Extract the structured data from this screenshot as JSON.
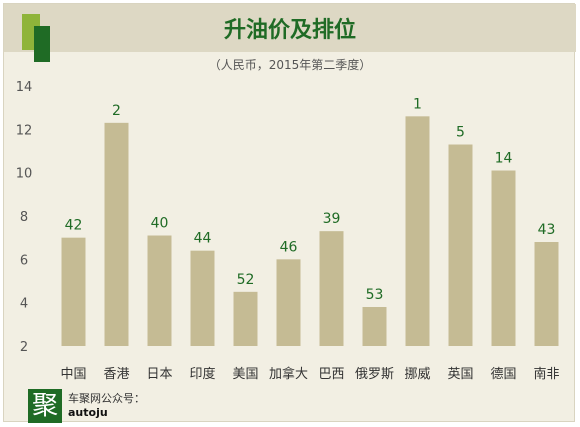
{
  "colors": {
    "bar": "#c5bb94",
    "label": "#1f6b25",
    "axis_text": "#555555",
    "grid": "#e2ddcb"
  },
  "chart_data": {
    "type": "bar",
    "title": "升油价及排位",
    "subtitle": "（人民币，2015年第二季度）",
    "xlabel": "",
    "ylabel": "",
    "ylim": [
      2,
      14
    ],
    "yticks": [
      2,
      4,
      6,
      8,
      10,
      12,
      14
    ],
    "grid": false,
    "categories": [
      "中国",
      "香港",
      "日本",
      "印度",
      "美国",
      "加拿大",
      "巴西",
      "俄罗斯",
      "挪威",
      "英国",
      "德国",
      "南非"
    ],
    "values": [
      7.0,
      12.3,
      7.1,
      6.4,
      4.5,
      6.0,
      7.3,
      3.8,
      12.6,
      11.3,
      10.1,
      6.8
    ],
    "rank_labels": [
      "42",
      "2",
      "40",
      "44",
      "52",
      "46",
      "39",
      "53",
      "1",
      "5",
      "14",
      "43"
    ]
  },
  "footer": {
    "logo_char": "聚",
    "line1": "车聚网公众号：",
    "line2": "autoju"
  }
}
